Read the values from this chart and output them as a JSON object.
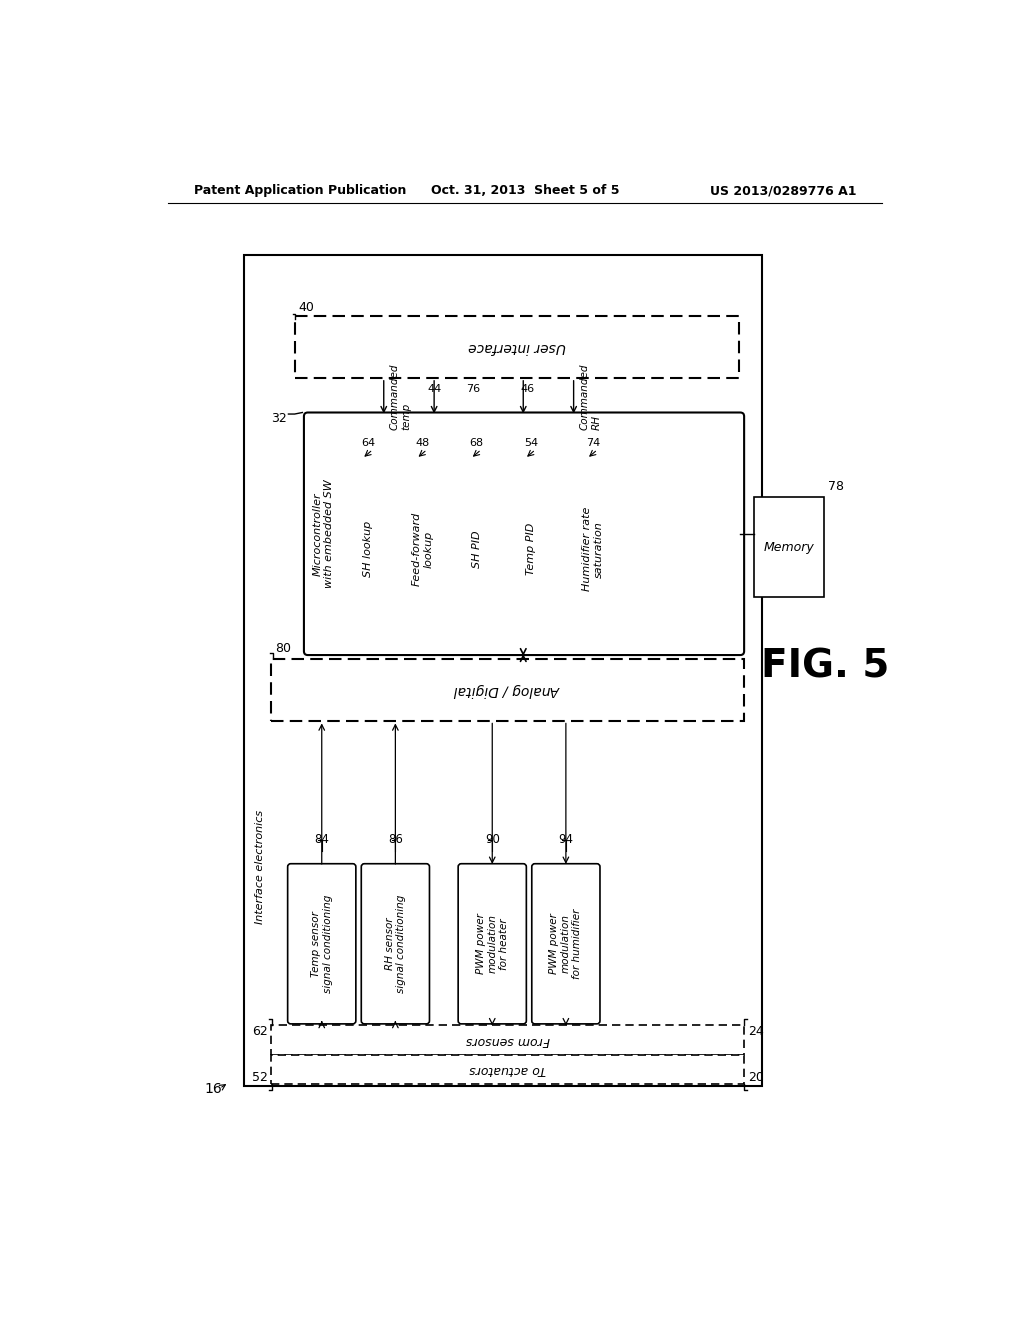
{
  "header_left": "Patent Application Publication",
  "header_center": "Oct. 31, 2013  Sheet 5 of 5",
  "header_right": "US 2013/0289776 A1",
  "fig_label": "FIG. 5",
  "background": "#ffffff",
  "mc_items": [
    {
      "ref": "64",
      "label": "SH lookup"
    },
    {
      "ref": "48",
      "label": "Feed-forward\nlookup"
    },
    {
      "ref": "68",
      "label": "SH PID"
    },
    {
      "ref": "54",
      "label": "Temp PID"
    },
    {
      "ref": "74",
      "label": "Humidifier rate\nsaturation"
    }
  ],
  "interface_boxes": [
    {
      "ref": "84",
      "label": "Temp sensor\nsignal conditioning"
    },
    {
      "ref": "86",
      "label": "RH sensor\nsignal conditioning"
    },
    {
      "ref": "90",
      "label": "PWM power\nmodulation\nfor heater"
    },
    {
      "ref": "94",
      "label": "PWM power\nmodulation\nfor humidifier"
    }
  ]
}
